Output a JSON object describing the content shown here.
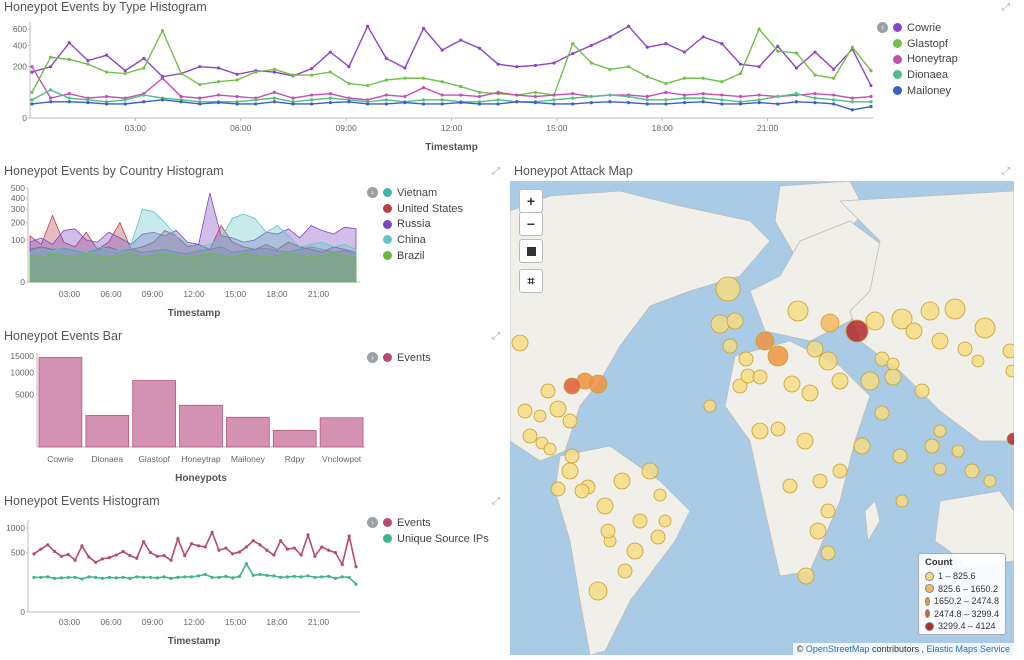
{
  "colors": {
    "cowrie": "#8e44c8",
    "glastopf": "#72c04a",
    "honeytrap": "#c44fb0",
    "dionaea": "#4fbf86",
    "mailoney": "#3d5fc4",
    "vietnam": "#3db5a7",
    "united_states": "#b6404b",
    "russia": "#7a48c2",
    "china": "#63c3c7",
    "brazil": "#6ab843",
    "events": "#b44a76",
    "unique_ips": "#3fb58a",
    "bar_fill": "#d492b2",
    "bar_stroke": "#b5557f"
  },
  "panels": {
    "type_histogram": {
      "title": "Honeypot Events by Type Histogram"
    },
    "country_histogram": {
      "title": "Honeypot Events by Country Histogram"
    },
    "events_bar": {
      "title": "Honeypot Events Bar"
    },
    "events_histogram": {
      "title": "Honeypot Events Histogram"
    },
    "attack_map": {
      "title": "Honeypot Attack Map"
    }
  },
  "map": {
    "zoom_in": "+",
    "zoom_out": "−",
    "legend_title": "Count",
    "legend": [
      {
        "label": "1 – 825.6",
        "color": "#f6dc83"
      },
      {
        "label": "825.6 – 1650.2",
        "color": "#f5b95e"
      },
      {
        "label": "1650.2 – 2474.8",
        "color": "#ee9343"
      },
      {
        "label": "2474.8 – 3299.4",
        "color": "#df5a34"
      },
      {
        "label": "3299.4 – 4124",
        "color": "#b52a2a"
      }
    ],
    "attribution_prefix": "© ",
    "attribution_osm": "OpenStreetMap",
    "attribution_mid": " contributors , ",
    "attribution_ems": "Elastic Maps Service"
  },
  "chart_data": [
    {
      "type": "line",
      "title": "Honeypot Events by Type Histogram",
      "xlabel": "Timestamp",
      "x_ticks": [
        "03:00",
        "06:00",
        "09:00",
        "12:00",
        "15:00",
        "18:00",
        "21:00"
      ],
      "y_ticks": [
        "0",
        "200",
        "400",
        "600"
      ],
      "yscale": "sqrt",
      "ylim": [
        0,
        700
      ],
      "series": [
        {
          "name": "Cowrie",
          "values": [
            160,
            200,
            430,
            250,
            300,
            170,
            270,
            130,
            150,
            200,
            190,
            145,
            170,
            160,
            135,
            185,
            330,
            200,
            640,
            270,
            190,
            610,
            350,
            460,
            370,
            220,
            200,
            210,
            230,
            315,
            400,
            500,
            640,
            380,
            420,
            330,
            500,
            420,
            220,
            200,
            390,
            190,
            330,
            180,
            360,
            80
          ]
        },
        {
          "name": "Glastopf",
          "values": [
            50,
            280,
            260,
            220,
            160,
            150,
            190,
            580,
            150,
            85,
            100,
            110,
            160,
            180,
            140,
            140,
            160,
            90,
            80,
            110,
            120,
            120,
            100,
            75,
            50,
            45,
            40,
            50,
            40,
            420,
            230,
            180,
            200,
            130,
            90,
            120,
            120,
            100,
            150,
            600,
            340,
            320,
            140,
            120,
            380,
            170
          ]
        },
        {
          "name": "Honeytrap",
          "values": [
            200,
            30,
            45,
            30,
            35,
            30,
            45,
            120,
            35,
            30,
            40,
            35,
            30,
            50,
            30,
            40,
            45,
            30,
            25,
            40,
            35,
            70,
            40,
            40,
            35,
            50,
            40,
            35,
            40,
            45,
            35,
            40,
            40,
            35,
            50,
            40,
            45,
            40,
            35,
            40,
            35,
            40,
            45,
            40,
            30,
            35
          ]
        },
        {
          "name": "Dionaea",
          "values": [
            25,
            60,
            30,
            25,
            20,
            25,
            40,
            30,
            25,
            20,
            20,
            20,
            25,
            30,
            20,
            25,
            30,
            25,
            20,
            25,
            20,
            25,
            25,
            20,
            20,
            25,
            20,
            20,
            25,
            30,
            35,
            40,
            35,
            25,
            25,
            30,
            30,
            25,
            20,
            25,
            35,
            45,
            30,
            25,
            20,
            20
          ]
        },
        {
          "name": "Mailoney",
          "values": [
            15,
            20,
            20,
            18,
            15,
            15,
            20,
            25,
            20,
            15,
            18,
            15,
            15,
            20,
            15,
            15,
            18,
            20,
            15,
            15,
            18,
            15,
            15,
            18,
            15,
            15,
            20,
            18,
            15,
            15,
            18,
            20,
            18,
            15,
            15,
            18,
            20,
            15,
            15,
            18,
            15,
            20,
            18,
            15,
            5,
            10
          ]
        }
      ]
    },
    {
      "type": "area",
      "title": "Honeypot Events by Country Histogram",
      "xlabel": "Timestamp",
      "x_ticks": [
        "03:00",
        "06:00",
        "09:00",
        "12:00",
        "15:00",
        "18:00",
        "21:00"
      ],
      "y_ticks": [
        "0",
        "100",
        "200",
        "300",
        "400",
        "500"
      ],
      "yscale": "sqrt",
      "ylim": [
        0,
        500
      ],
      "series": [
        {
          "name": "Vietnam",
          "values": [
            60,
            70,
            60,
            65,
            55,
            50,
            60,
            70,
            55,
            60,
            50,
            55,
            60,
            50,
            45,
            55,
            60,
            70,
            50,
            55,
            60,
            65,
            55,
            50,
            60,
            70,
            60,
            50,
            55,
            45
          ]
        },
        {
          "name": "United States",
          "values": [
            120,
            80,
            250,
            90,
            70,
            140,
            60,
            90,
            200,
            60,
            70,
            90,
            150,
            120,
            70,
            80,
            60,
            180,
            90,
            70,
            60,
            80,
            60,
            90,
            70,
            60,
            50,
            70,
            60,
            50
          ]
        },
        {
          "name": "Russia",
          "values": [
            90,
            110,
            80,
            150,
            160,
            100,
            90,
            140,
            110,
            80,
            130,
            140,
            120,
            150,
            90,
            80,
            450,
            120,
            110,
            90,
            100,
            140,
            130,
            160,
            110,
            180,
            150,
            130,
            170,
            160
          ]
        },
        {
          "name": "China",
          "values": [
            50,
            60,
            55,
            70,
            60,
            50,
            70,
            60,
            55,
            80,
            300,
            280,
            200,
            120,
            80,
            70,
            80,
            110,
            230,
            260,
            230,
            140,
            180,
            120,
            70,
            80,
            90,
            70,
            80,
            60
          ]
        },
        {
          "name": "Brazil",
          "values": [
            40,
            35,
            45,
            40,
            35,
            45,
            40,
            35,
            40,
            45,
            35,
            40,
            45,
            40,
            35,
            40,
            45,
            40,
            35,
            45,
            40,
            35,
            40,
            45,
            40,
            35,
            40,
            45,
            40,
            35
          ]
        }
      ]
    },
    {
      "type": "bar",
      "title": "Honeypot Events Bar",
      "xlabel": "Honeypots",
      "categories": [
        "Cowrie",
        "Dionaea",
        "Glastopf",
        "Honeytrap",
        "Mailoney",
        "Rdpy",
        "Vnclowpot"
      ],
      "values": [
        14500,
        1800,
        8000,
        3150,
        1600,
        500,
        1550
      ],
      "y_ticks": [
        "5000",
        "10000",
        "15000"
      ],
      "yscale": "sqrt",
      "ylim": [
        0,
        15000
      ],
      "series": [
        {
          "name": "Events"
        }
      ]
    },
    {
      "type": "line",
      "title": "Honeypot Events Histogram",
      "xlabel": "Timestamp",
      "x_ticks": [
        "03:00",
        "06:00",
        "09:00",
        "12:00",
        "15:00",
        "18:00",
        "21:00"
      ],
      "y_ticks": [
        "0",
        "500",
        "1000"
      ],
      "yscale": "sqrt",
      "ylim": [
        0,
        1200
      ],
      "series": [
        {
          "name": "Events",
          "values": [
            480,
            560,
            640,
            520,
            440,
            470,
            380,
            620,
            430,
            350,
            400,
            420,
            460,
            520,
            450,
            410,
            700,
            500,
            440,
            450,
            380,
            760,
            450,
            660,
            620,
            600,
            900,
            540,
            580,
            480,
            510,
            600,
            720,
            640,
            540,
            460,
            720,
            560,
            580,
            460,
            840,
            440,
            600,
            540,
            500,
            320,
            820,
            290
          ]
        },
        {
          "name": "Unique Source IPs",
          "values": [
            170,
            170,
            175,
            160,
            165,
            170,
            170,
            155,
            175,
            170,
            160,
            170,
            165,
            170,
            160,
            175,
            170,
            170,
            165,
            175,
            160,
            170,
            175,
            175,
            185,
            200,
            170,
            170,
            180,
            165,
            180,
            330,
            190,
            200,
            190,
            185,
            170,
            175,
            180,
            175,
            185,
            170,
            175,
            180,
            160,
            175,
            170,
            110
          ]
        }
      ]
    }
  ]
}
